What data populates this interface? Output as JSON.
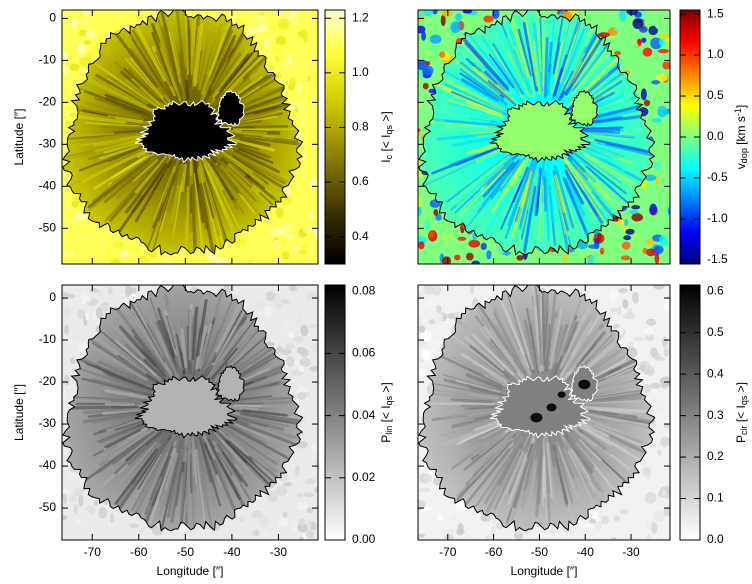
{
  "chart_data": [
    {
      "type": "heatmap",
      "ylabel": "Latitude [″]",
      "xlim": [
        -76.5,
        -21.5
      ],
      "ylim": [
        -58.5,
        2
      ],
      "xticks": [
        -70,
        -60,
        -50,
        -40,
        -30
      ],
      "yticks": [
        0,
        -10,
        -20,
        -30,
        -40,
        -50
      ],
      "xtick_labels": false,
      "ytick_labels": true,
      "contour_color": "#000000",
      "umbra_contour_color": "#ffffff",
      "colorbar": {
        "label": [
          {
            "text": "I"
          },
          {
            "text": "c",
            "sub": true
          },
          {
            "text": " [< I"
          },
          {
            "text": "qs",
            "sub": true
          },
          {
            "text": " >]"
          }
        ],
        "lim": [
          0.3,
          1.23
        ],
        "ticks": [
          0.4,
          0.6,
          0.8,
          {
            "value": 1,
            "label": "1.0"
          },
          1.2
        ],
        "colors": [
          "#000000",
          "#2e2600",
          "#6a6000",
          "#a49c00",
          "#d8d400",
          "#ffff40",
          "#ffffd0"
        ]
      }
    },
    {
      "type": "heatmap",
      "xlim": [
        -76.5,
        -21.5
      ],
      "ylim": [
        -58.5,
        2
      ],
      "xticks": [
        -70,
        -60,
        -50,
        -40,
        -30
      ],
      "yticks": [
        0,
        -10,
        -20,
        -30,
        -40,
        -50
      ],
      "xtick_labels": false,
      "ytick_labels": false,
      "contour_color": "#000000",
      "umbra_contour_color": "#000000",
      "colorbar": {
        "label": [
          {
            "text": "v"
          },
          {
            "text": "dop",
            "sub": true
          },
          {
            "text": " [km s"
          },
          {
            "text": "-1",
            "sup": true
          },
          {
            "text": "]"
          }
        ],
        "lim": [
          -1.55,
          1.55
        ],
        "ticks": [
          1.5,
          {
            "value": 1,
            "label": "1.0"
          },
          0.5,
          {
            "value": 0,
            "label": "0.0"
          },
          -0.5,
          {
            "value": -1,
            "label": "-1.0"
          },
          -1.5
        ],
        "colors": [
          "#000080",
          "#0000ff",
          "#0080ff",
          "#00ffff",
          "#80ff80",
          "#ffff00",
          "#ff8000",
          "#ff0000",
          "#800000"
        ]
      }
    },
    {
      "type": "heatmap",
      "ylabel": "Latitude [″]",
      "xlabel": "Longitude [″]",
      "xlim": [
        -76.5,
        -21.5
      ],
      "ylim": [
        -57.6,
        3.1
      ],
      "xticks": [
        -70,
        -60,
        -50,
        -40,
        -30
      ],
      "yticks": [
        0,
        -10,
        -20,
        -30,
        -40,
        -50
      ],
      "xtick_labels": true,
      "ytick_labels": true,
      "contour_color": "#000000",
      "umbra_contour_color": "#000000",
      "colorbar": {
        "label": [
          {
            "text": "P"
          },
          {
            "text": "lin",
            "sub": true
          },
          {
            "text": " [< I"
          },
          {
            "text": "qs",
            "sub": true
          },
          {
            "text": " >]"
          }
        ],
        "lim": [
          0,
          0.082
        ],
        "ticks": [
          {
            "value": 0,
            "label": "0.00"
          },
          {
            "value": 0.02,
            "label": "0.02"
          },
          {
            "value": 0.04,
            "label": "0.04"
          },
          {
            "value": 0.06,
            "label": "0.06"
          },
          {
            "value": 0.08,
            "label": "0.08"
          }
        ],
        "colors": [
          "#ffffff",
          "#000000"
        ]
      }
    },
    {
      "type": "heatmap",
      "xlabel": "Longitude [″]",
      "xlim": [
        -76.5,
        -21.5
      ],
      "ylim": [
        -57.6,
        3.1
      ],
      "xticks": [
        -70,
        -60,
        -50,
        -40,
        -30
      ],
      "yticks": [
        0,
        -10,
        -20,
        -30,
        -40,
        -50
      ],
      "xtick_labels": true,
      "ytick_labels": false,
      "contour_color": "#000000",
      "umbra_contour_color": "#ffffff",
      "colorbar": {
        "label": [
          {
            "text": "P"
          },
          {
            "text": "cir",
            "sub": true
          },
          {
            "text": " [< I"
          },
          {
            "text": "qs",
            "sub": true
          },
          {
            "text": " >]"
          }
        ],
        "lim": [
          0,
          0.615
        ],
        "ticks": [
          {
            "value": 0,
            "label": "0.0"
          },
          0.1,
          0.2,
          0.3,
          0.4,
          0.5,
          0.6
        ],
        "colors": [
          "#ffffff",
          "#000000"
        ]
      }
    }
  ]
}
